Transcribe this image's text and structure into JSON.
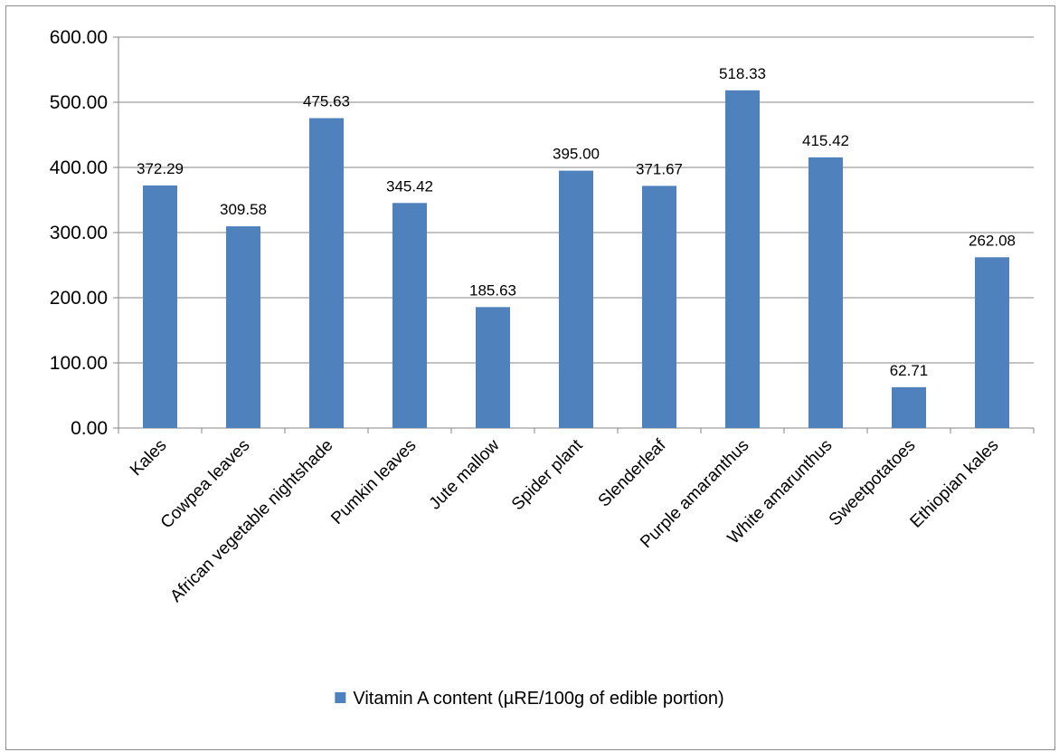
{
  "chart_data": {
    "type": "bar",
    "categories": [
      "Kales",
      "Cowpea leaves",
      "African vegetable nightshade",
      "Pumkin leaves",
      "Jute mallow",
      "Spider plant",
      "Slenderleaf",
      "Purple amaranthus",
      "White amarunthus",
      "Sweetpotatoes",
      "Ethiopian kales"
    ],
    "series": [
      {
        "name": "Vitamin A content (µRE/100g of edible portion)",
        "values": [
          372.29,
          309.58,
          475.63,
          345.42,
          185.63,
          395.0,
          371.67,
          518.33,
          415.42,
          62.71,
          262.08
        ],
        "value_labels": [
          "372.29",
          "309.58",
          "475.63",
          "345.42",
          "185.63",
          "395.00",
          "371.67",
          "518.33",
          "415.42",
          "62.71",
          "262.08"
        ],
        "color": "#4f81bd"
      }
    ],
    "ylim": [
      0,
      600
    ],
    "y_ticks": [
      "0.00",
      "100.00",
      "200.00",
      "300.00",
      "400.00",
      "500.00",
      "600.00"
    ],
    "grid": true,
    "legend_position": "bottom"
  }
}
